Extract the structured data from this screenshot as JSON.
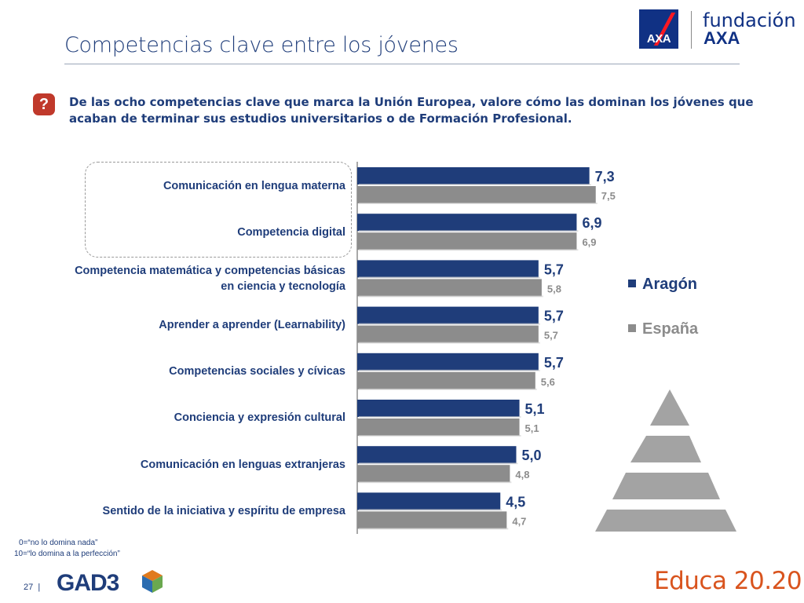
{
  "header": {
    "title": "Competencias clave entre los jóvenes",
    "logo_brand": "AXA",
    "logo_fundacion": "fundación",
    "logo_axa": "AXA"
  },
  "question": {
    "icon": "question-icon",
    "text": "De las ocho competencias clave que marca la Unión Europea, valore cómo las dominan los jóvenes que acaban de terminar sus estudios universitarios o de Formación Profesional."
  },
  "chart_data": {
    "type": "bar",
    "orientation": "horizontal",
    "categories": [
      "Comunicación en lengua materna",
      "Competencia digital",
      "Competencia matemática y competencias básicas en ciencia y tecnología",
      "Aprender a aprender (Learnability)",
      "Competencias sociales y cívicas",
      "Conciencia y expresión cultural",
      "Comunicación en lenguas extranjeras",
      "Sentido de la iniciativa y espíritu de empresa"
    ],
    "series": [
      {
        "name": "Aragón",
        "values": [
          7.3,
          6.9,
          5.7,
          5.7,
          5.7,
          5.1,
          5.0,
          4.5
        ],
        "labels": [
          "7,3",
          "6,9",
          "5,7",
          "5,7",
          "5,7",
          "5,1",
          "5,0",
          "4,5"
        ],
        "color": "#1f3d7a"
      },
      {
        "name": "España",
        "values": [
          7.5,
          6.9,
          5.8,
          5.7,
          5.6,
          5.1,
          4.8,
          4.7
        ],
        "labels": [
          "7,5",
          "6,9",
          "5,8",
          "5,7",
          "5,6",
          "5,1",
          "4,8",
          "4,7"
        ],
        "color": "#8c8c8c"
      }
    ],
    "xlim": [
      0,
      10
    ],
    "legend_position": "right",
    "highlighted_categories": [
      "Comunicación en lengua materna",
      "Competencia digital"
    ]
  },
  "notes": {
    "scale_min": "0=“no lo domina nada”",
    "scale_max": "10=“lo domina a la perfección”"
  },
  "footer": {
    "page_number": "27",
    "separator": "|",
    "gad3_logo": "GAD3",
    "educa_logo": "Educa 20.20"
  }
}
